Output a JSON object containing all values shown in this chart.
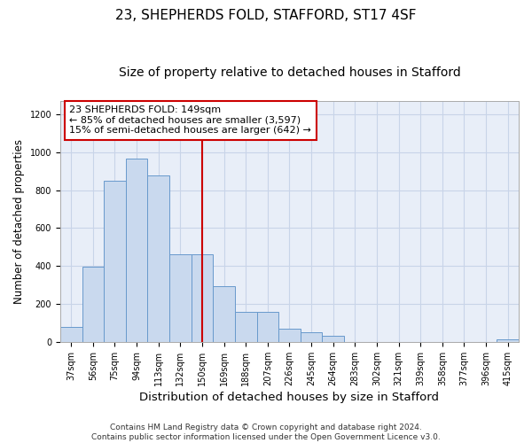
{
  "title": "23, SHEPHERDS FOLD, STAFFORD, ST17 4SF",
  "subtitle": "Size of property relative to detached houses in Stafford",
  "xlabel": "Distribution of detached houses by size in Stafford",
  "ylabel": "Number of detached properties",
  "categories": [
    "37sqm",
    "56sqm",
    "75sqm",
    "94sqm",
    "113sqm",
    "132sqm",
    "150sqm",
    "169sqm",
    "188sqm",
    "207sqm",
    "226sqm",
    "245sqm",
    "264sqm",
    "283sqm",
    "302sqm",
    "321sqm",
    "339sqm",
    "358sqm",
    "377sqm",
    "396sqm",
    "415sqm"
  ],
  "values": [
    80,
    398,
    848,
    965,
    878,
    460,
    460,
    293,
    160,
    160,
    68,
    52,
    33,
    0,
    0,
    0,
    0,
    0,
    0,
    0,
    15
  ],
  "bar_color": "#c9d9ee",
  "bar_edge_color": "#6899cc",
  "vline_color": "#cc0000",
  "vline_index": 6,
  "annotation_text": "23 SHEPHERDS FOLD: 149sqm\n← 85% of detached houses are smaller (3,597)\n15% of semi-detached houses are larger (642) →",
  "annotation_box_color": "#cc0000",
  "ylim": [
    0,
    1270
  ],
  "yticks": [
    0,
    200,
    400,
    600,
    800,
    1000,
    1200
  ],
  "footer_text": "Contains HM Land Registry data © Crown copyright and database right 2024.\nContains public sector information licensed under the Open Government Licence v3.0.",
  "title_fontsize": 11,
  "subtitle_fontsize": 10,
  "xlabel_fontsize": 9.5,
  "ylabel_fontsize": 8.5,
  "tick_fontsize": 7,
  "annotation_fontsize": 8,
  "footer_fontsize": 6.5,
  "bg_color": "#e8eef8"
}
